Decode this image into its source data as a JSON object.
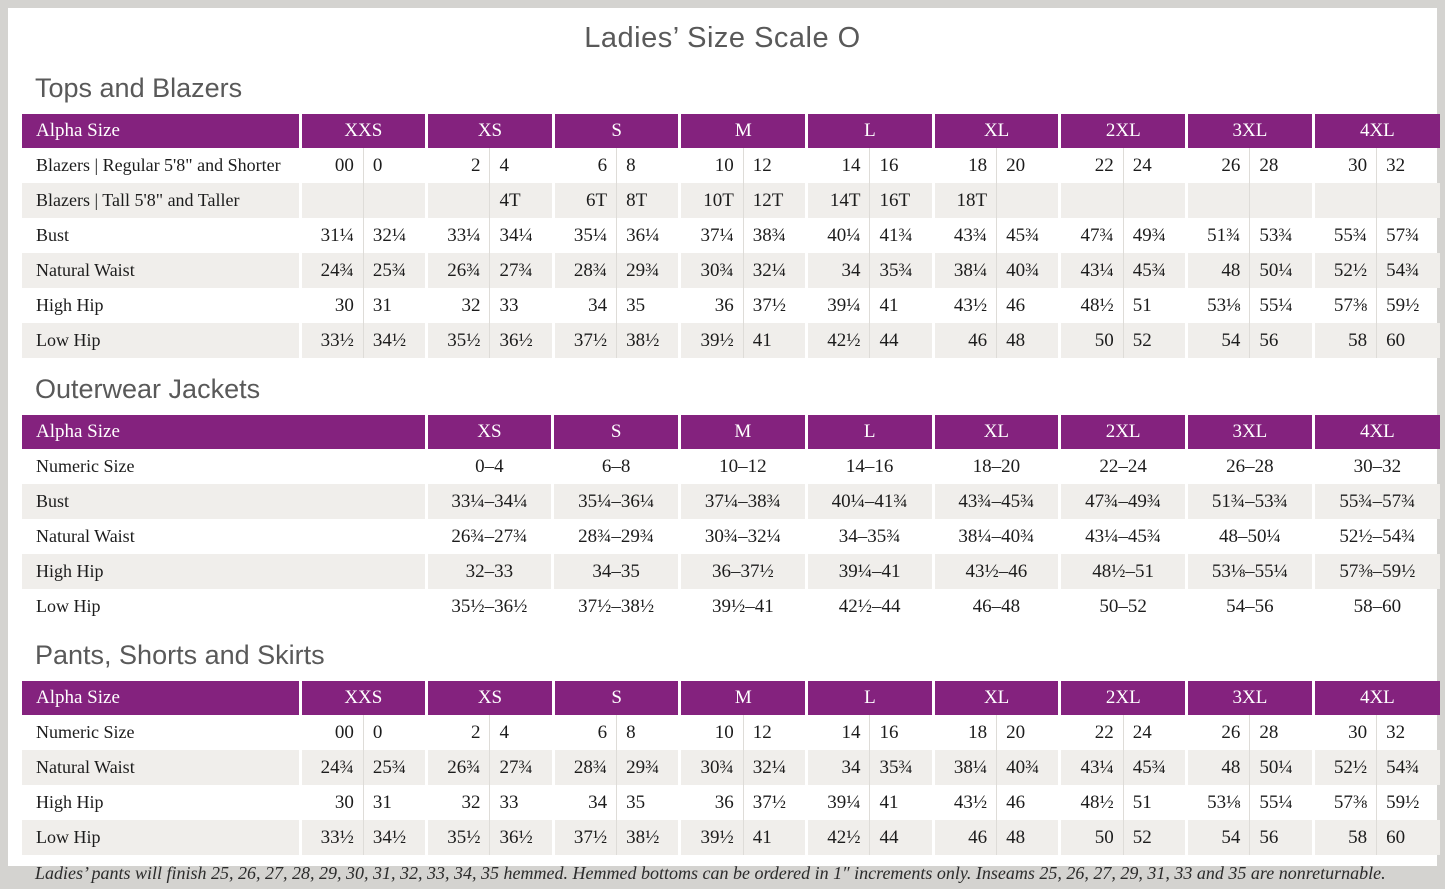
{
  "page": {
    "title": "Ladies’ Size Scale O",
    "footnote": "Ladies’ pants will finish 25, 26, 27, 28, 29, 30, 31, 32, 33, 34, 35 hemmed. Hemmed bottoms can be ordered in 1″ increments only. Inseams 25, 26, 27, 29, 31, 33 and 35 are nonreturnable."
  },
  "colors": {
    "header_purple": "#84227e",
    "alt_row_gray": "#f0eeeb",
    "heading_gray": "#595959",
    "text": "#1c1c1c",
    "page_frame": "#d4d3d0"
  },
  "tables": [
    {
      "id": "tops-and-blazers",
      "section_title": "Tops and Blazers",
      "header_label": "Alpha Size",
      "split_columns": true,
      "sizes": [
        "XXS",
        "XS",
        "S",
        "M",
        "L",
        "XL",
        "2XL",
        "3XL",
        "4XL"
      ],
      "rows": [
        {
          "label": "Blazers  |  Regular 5'8\" and Shorter",
          "values": [
            "00",
            "0",
            "2",
            "4",
            "6",
            "8",
            "10",
            "12",
            "14",
            "16",
            "18",
            "20",
            "22",
            "24",
            "26",
            "28",
            "30",
            "32"
          ]
        },
        {
          "label": "Blazers  |  Tall 5'8\" and Taller",
          "values": [
            "",
            "",
            "",
            "4T",
            "6T",
            "8T",
            "10T",
            "12T",
            "14T",
            "16T",
            "18T",
            "",
            "",
            "",
            "",
            "",
            "",
            ""
          ]
        },
        {
          "label": "Bust",
          "values": [
            "31¼",
            "32¼",
            "33¼",
            "34¼",
            "35¼",
            "36¼",
            "37¼",
            "38¾",
            "40¼",
            "41¾",
            "43¾",
            "45¾",
            "47¾",
            "49¾",
            "51¾",
            "53¾",
            "55¾",
            "57¾"
          ]
        },
        {
          "label": "Natural Waist",
          "values": [
            "24¾",
            "25¾",
            "26¾",
            "27¾",
            "28¾",
            "29¾",
            "30¾",
            "32¼",
            "34",
            "35¾",
            "38¼",
            "40¾",
            "43¼",
            "45¾",
            "48",
            "50¼",
            "52½",
            "54¾"
          ]
        },
        {
          "label": "High Hip",
          "values": [
            "30",
            "31",
            "32",
            "33",
            "34",
            "35",
            "36",
            "37½",
            "39¼",
            "41",
            "43½",
            "46",
            "48½",
            "51",
            "53⅛",
            "55¼",
            "57⅜",
            "59½"
          ]
        },
        {
          "label": "Low Hip",
          "values": [
            "33½",
            "34½",
            "35½",
            "36½",
            "37½",
            "38½",
            "39½",
            "41",
            "42½",
            "44",
            "46",
            "48",
            "50",
            "52",
            "54",
            "56",
            "58",
            "60"
          ]
        }
      ]
    },
    {
      "id": "outerwear-jackets",
      "section_title": "Outerwear Jackets",
      "header_label": "Alpha Size",
      "split_columns": false,
      "sizes": [
        "XS",
        "S",
        "M",
        "L",
        "XL",
        "2XL",
        "3XL",
        "4XL"
      ],
      "rows": [
        {
          "label": "Numeric Size",
          "values": [
            "0–4",
            "6–8",
            "10–12",
            "14–16",
            "18–20",
            "22–24",
            "26–28",
            "30–32"
          ]
        },
        {
          "label": "Bust",
          "values": [
            "33¼–34¼",
            "35¼–36¼",
            "37¼–38¾",
            "40¼–41¾",
            "43¾–45¾",
            "47¾–49¾",
            "51¾–53¾",
            "55¾–57¾"
          ]
        },
        {
          "label": "Natural Waist",
          "values": [
            "26¾–27¾",
            "28¾–29¾",
            "30¾–32¼",
            "34–35¾",
            "38¼–40¾",
            "43¼–45¾",
            "48–50¼",
            "52½–54¾"
          ]
        },
        {
          "label": "High Hip",
          "values": [
            "32–33",
            "34–35",
            "36–37½",
            "39¼–41",
            "43½–46",
            "48½–51",
            "53⅛–55¼",
            "57⅜–59½"
          ]
        },
        {
          "label": "Low Hip",
          "values": [
            "35½–36½",
            "37½–38½",
            "39½–41",
            "42½–44",
            "46–48",
            "50–52",
            "54–56",
            "58–60"
          ]
        }
      ]
    },
    {
      "id": "pants-shorts-skirts",
      "section_title": "Pants, Shorts and Skirts",
      "header_label": "Alpha Size",
      "split_columns": true,
      "sizes": [
        "XXS",
        "XS",
        "S",
        "M",
        "L",
        "XL",
        "2XL",
        "3XL",
        "4XL"
      ],
      "rows": [
        {
          "label": "Numeric Size",
          "values": [
            "00",
            "0",
            "2",
            "4",
            "6",
            "8",
            "10",
            "12",
            "14",
            "16",
            "18",
            "20",
            "22",
            "24",
            "26",
            "28",
            "30",
            "32"
          ]
        },
        {
          "label": "Natural Waist",
          "values": [
            "24¾",
            "25¾",
            "26¾",
            "27¾",
            "28¾",
            "29¾",
            "30¾",
            "32¼",
            "34",
            "35¾",
            "38¼",
            "40¾",
            "43¼",
            "45¾",
            "48",
            "50¼",
            "52½",
            "54¾"
          ]
        },
        {
          "label": "High Hip",
          "values": [
            "30",
            "31",
            "32",
            "33",
            "34",
            "35",
            "36",
            "37½",
            "39¼",
            "41",
            "43½",
            "46",
            "48½",
            "51",
            "53⅛",
            "55¼",
            "57⅜",
            "59½"
          ]
        },
        {
          "label": "Low Hip",
          "values": [
            "33½",
            "34½",
            "35½",
            "36½",
            "37½",
            "38½",
            "39½",
            "41",
            "42½",
            "44",
            "46",
            "48",
            "50",
            "52",
            "54",
            "56",
            "58",
            "60"
          ]
        }
      ]
    }
  ]
}
